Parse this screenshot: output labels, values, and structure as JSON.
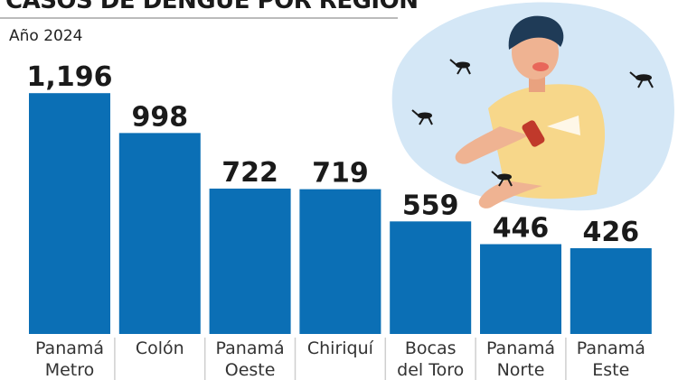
{
  "header": {
    "title": "CASOS DE DENGUE POR REGIÓN",
    "subtitle": "Año 2024"
  },
  "colors": {
    "bar": "#0b6fb5",
    "value_text": "#1a1a1a",
    "category_text": "#333333",
    "divider": "#cfcfcf",
    "illustration_bg": "#d4e7f6"
  },
  "illustration": {
    "subject": "man-spraying-mosquito-repellent",
    "icons": [
      "mosquito-icon",
      "repellent-spray-icon"
    ]
  },
  "chart_data": {
    "type": "bar",
    "title": "CASOS DE DENGUE POR REGIÓN",
    "subtitle": "Año 2024",
    "categories": [
      [
        "Panamá",
        "Metro"
      ],
      [
        "Colón"
      ],
      [
        "Panamá",
        "Oeste"
      ],
      [
        "Chiriquí"
      ],
      [
        "Bocas",
        "del Toro"
      ],
      [
        "Panamá",
        "Norte"
      ],
      [
        "Panamá",
        "Este"
      ]
    ],
    "values": [
      1196,
      998,
      722,
      719,
      559,
      446,
      426
    ],
    "value_labels": [
      "1,196",
      "998",
      "722",
      "719",
      "559",
      "446",
      "426"
    ],
    "ylim": [
      0,
      1300
    ],
    "grid": false,
    "legend": "none"
  }
}
